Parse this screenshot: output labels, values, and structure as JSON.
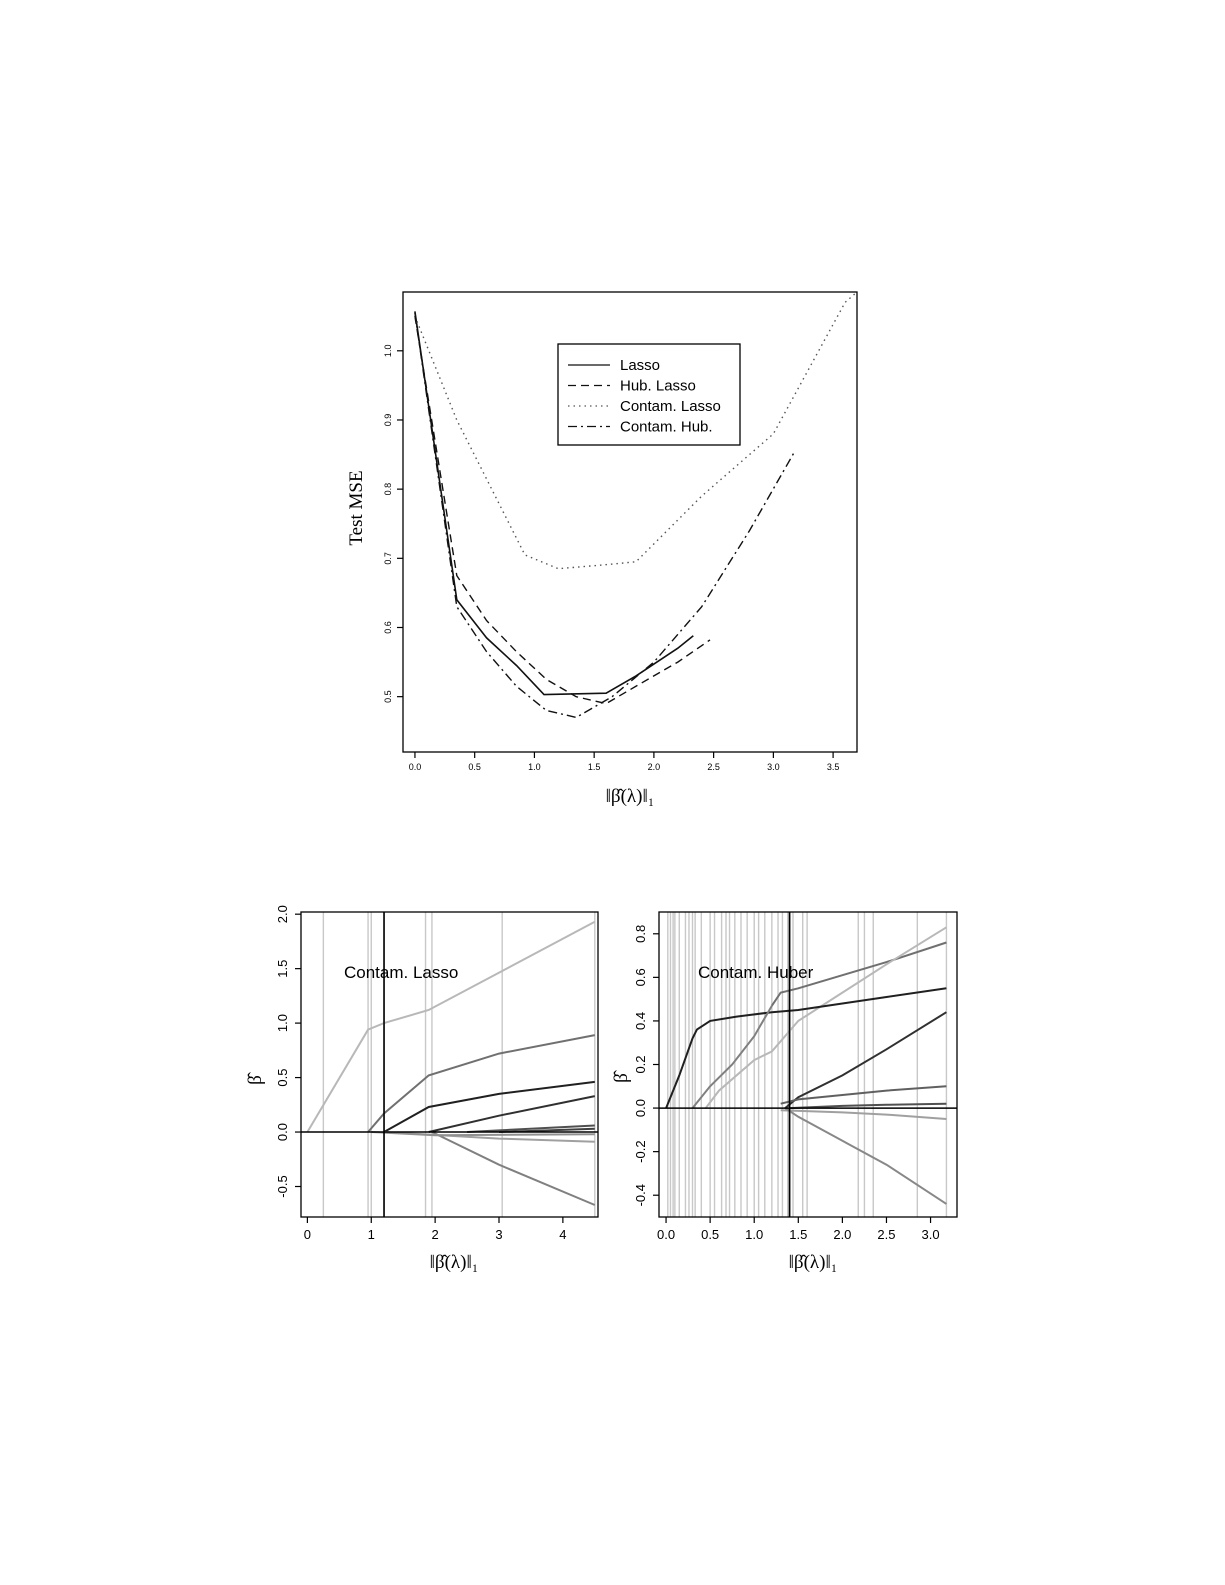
{
  "chart_data": [
    {
      "type": "line",
      "title": "",
      "xlabel": "‖β̂(λ)‖₁",
      "ylabel": "Test MSE",
      "xlim": [
        -0.1,
        3.7
      ],
      "ylim": [
        0.42,
        1.085
      ],
      "xticks": [
        "0.0",
        "0.5",
        "1.0",
        "1.5",
        "2.0",
        "2.5",
        "3.0",
        "3.5"
      ],
      "yticks": [
        "0.5",
        "0.6",
        "0.7",
        "0.8",
        "0.9",
        "1.0"
      ],
      "legend_position": "top-right",
      "series": [
        {
          "name": "Lasso",
          "style": "solid",
          "x": [
            0.0,
            0.35,
            0.6,
            0.85,
            1.08,
            1.6,
            1.85,
            2.2,
            2.33
          ],
          "y": [
            1.057,
            0.64,
            0.585,
            0.545,
            0.503,
            0.505,
            0.53,
            0.57,
            0.588
          ]
        },
        {
          "name": "Hub. Lasso",
          "style": "dashed",
          "x": [
            0.0,
            0.35,
            0.6,
            0.85,
            1.1,
            1.35,
            1.6,
            1.9,
            2.2,
            2.47
          ],
          "y": [
            1.05,
            0.675,
            0.61,
            0.565,
            0.525,
            0.5,
            0.49,
            0.52,
            0.55,
            0.582
          ]
        },
        {
          "name": "Contam. Lasso",
          "style": "dotted",
          "x": [
            0.0,
            0.35,
            0.92,
            1.2,
            1.55,
            1.85,
            2.4,
            3.0,
            3.6,
            3.7
          ],
          "y": [
            1.05,
            0.9,
            0.705,
            0.685,
            0.69,
            0.695,
            0.79,
            0.88,
            1.07,
            1.085
          ]
        },
        {
          "name": "Contam. Hub.",
          "style": "dashdot",
          "x": [
            0.0,
            0.35,
            0.6,
            0.85,
            1.1,
            1.35,
            1.65,
            2.0,
            2.4,
            2.8,
            3.18
          ],
          "y": [
            1.055,
            0.63,
            0.565,
            0.515,
            0.48,
            0.47,
            0.5,
            0.55,
            0.63,
            0.74,
            0.855
          ]
        }
      ]
    },
    {
      "type": "line",
      "title": "",
      "annotation": "Contam. Lasso",
      "xlabel": "‖β̂(λ)‖₁",
      "ylabel": "β̂",
      "xlim": [
        -0.1,
        4.55
      ],
      "ylim": [
        -0.78,
        2.02
      ],
      "xticks": [
        "0",
        "1",
        "2",
        "3",
        "4"
      ],
      "yticks": [
        "-0.5",
        "0.0",
        "0.5",
        "1.0",
        "1.5",
        "2.0"
      ],
      "selected_x": 1.2,
      "vlines_x": [
        0.25,
        0.95,
        1.0,
        1.2,
        1.85,
        1.95,
        3.05,
        4.5
      ],
      "series": [
        {
          "color": "#b8b8b8",
          "x": [
            0.0,
            0.95,
            1.2,
            1.9,
            4.5
          ],
          "y": [
            0.0,
            0.94,
            1.0,
            1.12,
            1.93
          ]
        },
        {
          "color": "#707070",
          "x": [
            0.95,
            1.2,
            1.9,
            3.0,
            4.5
          ],
          "y": [
            0.0,
            0.17,
            0.52,
            0.72,
            0.89
          ]
        },
        {
          "color": "#202020",
          "x": [
            1.2,
            1.9,
            3.0,
            4.5
          ],
          "y": [
            0.0,
            0.23,
            0.35,
            0.46
          ]
        },
        {
          "color": "#303030",
          "x": [
            1.9,
            3.0,
            4.5
          ],
          "y": [
            0.0,
            0.15,
            0.33
          ]
        },
        {
          "color": "#808080",
          "x": [
            1.95,
            3.0,
            4.5
          ],
          "y": [
            0.0,
            -0.3,
            -0.67
          ]
        },
        {
          "color": "#a0a0a0",
          "x": [
            1.2,
            3.0,
            4.5
          ],
          "y": [
            0.0,
            -0.06,
            -0.09
          ]
        },
        {
          "color": "#505050",
          "x": [
            2.5,
            4.5
          ],
          "y": [
            0.0,
            0.06
          ]
        },
        {
          "color": "#909090",
          "x": [
            1.0,
            2.0,
            4.5
          ],
          "y": [
            0.0,
            -0.03,
            -0.02
          ]
        },
        {
          "color": "#404040",
          "x": [
            3.0,
            4.5
          ],
          "y": [
            0.0,
            0.03
          ]
        }
      ]
    },
    {
      "type": "line",
      "title": "",
      "annotation": "Contam. Huber",
      "xlabel": "‖β̂(λ)‖₁",
      "ylabel": "β̂",
      "xlim": [
        -0.08,
        3.3
      ],
      "ylim": [
        -0.5,
        0.9
      ],
      "xticks": [
        "0.0",
        "0.5",
        "1.0",
        "1.5",
        "2.0",
        "2.5",
        "3.0"
      ],
      "yticks": [
        "-0.4",
        "-0.2",
        "0.0",
        "0.2",
        "0.4",
        "0.6",
        "0.8"
      ],
      "selected_x": 1.4,
      "vlines_x": [
        0.02,
        0.05,
        0.08,
        0.1,
        0.15,
        0.22,
        0.26,
        0.3,
        0.33,
        0.4,
        0.5,
        0.55,
        0.63,
        0.68,
        0.72,
        0.78,
        0.85,
        0.92,
        1.0,
        1.05,
        1.12,
        1.2,
        1.27,
        1.32,
        1.38,
        1.41,
        1.44,
        1.55,
        1.6,
        2.18,
        2.25,
        2.35,
        2.85,
        3.18
      ],
      "series": [
        {
          "color": "#707070",
          "x": [
            1.2,
            1.3,
            1.5,
            2.0,
            2.5,
            3.18
          ],
          "y": [
            0.47,
            0.53,
            0.55,
            0.61,
            0.67,
            0.76
          ]
        },
        {
          "color": "#b8b8b8",
          "x": [
            0.45,
            0.6,
            1.0,
            1.2,
            1.5,
            2.0,
            2.5,
            3.18
          ],
          "y": [
            0.0,
            0.08,
            0.22,
            0.26,
            0.4,
            0.53,
            0.66,
            0.83
          ]
        },
        {
          "color": "#202020",
          "x": [
            0.0,
            0.15,
            0.3,
            0.35,
            0.5,
            0.8,
            1.2,
            1.5,
            2.0,
            2.5,
            3.18
          ],
          "y": [
            0.0,
            0.15,
            0.32,
            0.36,
            0.4,
            0.42,
            0.44,
            0.45,
            0.48,
            0.51,
            0.55
          ]
        },
        {
          "color": "#303030",
          "x": [
            1.35,
            1.5,
            2.0,
            2.5,
            3.18
          ],
          "y": [
            0.0,
            0.05,
            0.15,
            0.27,
            0.44
          ]
        },
        {
          "color": "#808080",
          "x": [
            0.3,
            0.5,
            0.75,
            1.0,
            1.2
          ],
          "y": [
            0.0,
            0.1,
            0.2,
            0.33,
            0.47
          ]
        },
        {
          "color": "#606060",
          "x": [
            1.3,
            1.5,
            2.0,
            2.5,
            3.18
          ],
          "y": [
            0.02,
            0.04,
            0.06,
            0.08,
            0.1
          ]
        },
        {
          "color": "#505050",
          "x": [
            1.4,
            2.0,
            2.5,
            3.18
          ],
          "y": [
            0.0,
            0.01,
            0.015,
            0.02
          ]
        },
        {
          "color": "#a0a0a0",
          "x": [
            1.3,
            2.0,
            2.5,
            3.18
          ],
          "y": [
            -0.01,
            -0.02,
            -0.03,
            -0.05
          ]
        },
        {
          "color": "#888888",
          "x": [
            1.35,
            1.5,
            2.0,
            2.5,
            3.18
          ],
          "y": [
            0.0,
            -0.04,
            -0.15,
            -0.26,
            -0.44
          ]
        }
      ]
    }
  ]
}
